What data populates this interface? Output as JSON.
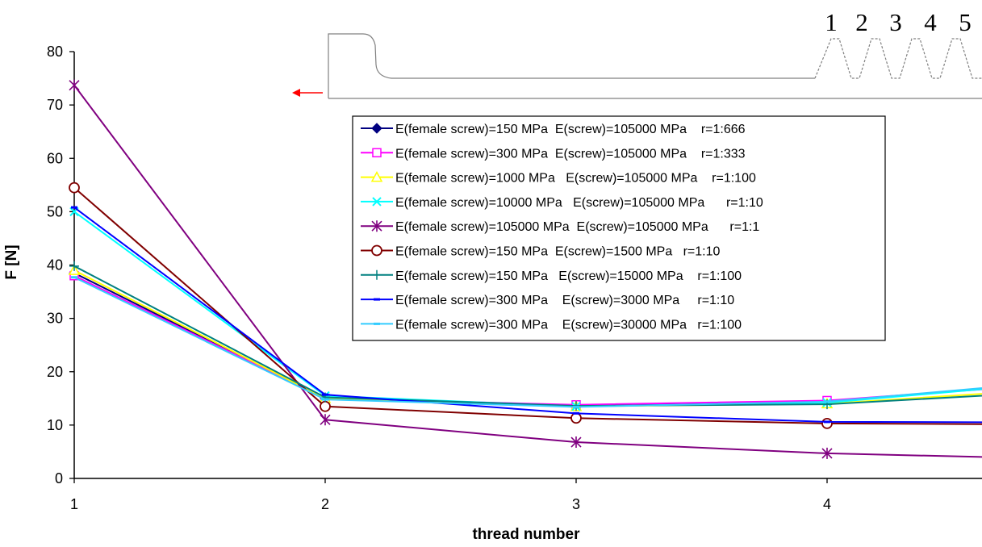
{
  "chart_data": {
    "type": "line",
    "xlabel": "thread number",
    "ylabel": "F  [N]",
    "xlim": [
      1,
      4.6
    ],
    "ylim": [
      0,
      80
    ],
    "x_ticks": [
      "1",
      "2",
      "3",
      "4"
    ],
    "y_ticks": [
      "0",
      "10",
      "20",
      "30",
      "40",
      "50",
      "60",
      "70",
      "80"
    ],
    "grid": false,
    "legend_position": "upper-right",
    "x": [
      1,
      2,
      3,
      4,
      5
    ],
    "series": [
      {
        "name": "E(female screw)=150 MPa  E(screw)=105000 MPa    r=1:666",
        "color": "#000080",
        "marker": "diamond-filled",
        "values": [
          38.5,
          15.0,
          13.6,
          14.4,
          18.3
        ]
      },
      {
        "name": "E(female screw)=300 MPa  E(screw)=105000 MPa    r=1:333",
        "color": "#ff00ff",
        "marker": "square-open",
        "values": [
          38.0,
          15.0,
          13.8,
          14.6,
          18.0
        ]
      },
      {
        "name": "E(female screw)=1000 MPa   E(screw)=105000 MPa    r=1:100",
        "color": "#ffff00",
        "marker": "triangle-open",
        "values": [
          39.0,
          15.0,
          13.5,
          14.0,
          17.0
        ]
      },
      {
        "name": "E(female screw)=10000 MPa   E(screw)=105000 MPa      r=1:10",
        "color": "#00ffff",
        "marker": "x",
        "values": [
          50.0,
          15.5,
          13.5,
          14.2,
          18.3
        ]
      },
      {
        "name": "E(female screw)=105000 MPa  E(screw)=105000 MPa      r=1:1",
        "color": "#800080",
        "marker": "asterisk",
        "values": [
          73.7,
          11.0,
          6.8,
          4.7,
          3.6
        ]
      },
      {
        "name": "E(female screw)=150 MPa  E(screw)=1500 MPa   r=1:10",
        "color": "#800000",
        "marker": "circle-open",
        "values": [
          54.5,
          13.5,
          11.3,
          10.3,
          10.1
        ]
      },
      {
        "name": "E(female screw)=150 MPa   E(screw)=15000 MPa    r=1:100",
        "color": "#008080",
        "marker": "plus",
        "values": [
          39.8,
          15.2,
          13.6,
          13.9,
          16.5
        ]
      },
      {
        "name": "E(female screw)=300 MPa    E(screw)=3000 MPa     r=1:10",
        "color": "#0000ff",
        "marker": "dash",
        "values": [
          50.8,
          15.7,
          12.2,
          10.6,
          10.5
        ]
      },
      {
        "name": "E(female screw)=300 MPa    E(screw)=30000 MPa   r=1:100",
        "color": "#33ccff",
        "marker": "dash",
        "values": [
          37.7,
          14.8,
          13.4,
          14.4,
          18.5
        ]
      }
    ]
  },
  "inset": {
    "thread_labels": [
      "1",
      "2",
      "3",
      "4",
      "5"
    ],
    "arrow_color": "#ff0000"
  }
}
